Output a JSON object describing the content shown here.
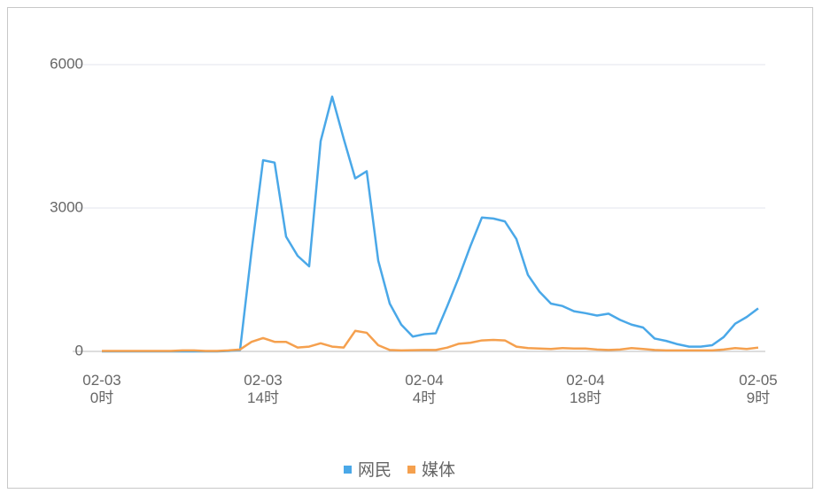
{
  "chart_data": {
    "type": "line",
    "categories": [
      "02-03\n0时",
      null,
      null,
      null,
      null,
      null,
      null,
      null,
      null,
      null,
      null,
      null,
      null,
      null,
      "02-03\n14时",
      null,
      null,
      null,
      null,
      null,
      null,
      null,
      null,
      null,
      null,
      null,
      null,
      null,
      "02-04\n4时",
      null,
      null,
      null,
      null,
      null,
      null,
      null,
      null,
      null,
      null,
      null,
      null,
      null,
      "02-04\n18时",
      null,
      null,
      null,
      null,
      null,
      null,
      null,
      null,
      null,
      null,
      null,
      null,
      null,
      null,
      "02-05\n9时"
    ],
    "series": [
      {
        "name": "网民",
        "color": "#4aa8e8",
        "values": [
          0,
          0,
          0,
          0,
          0,
          0,
          0,
          0,
          0,
          0,
          0,
          10,
          30,
          2100,
          4000,
          3950,
          2400,
          2000,
          1780,
          4400,
          5330,
          4450,
          3620,
          3770,
          1900,
          1000,
          560,
          310,
          360,
          380,
          950,
          1550,
          2200,
          2800,
          2780,
          2720,
          2350,
          1600,
          1250,
          1000,
          950,
          840,
          800,
          750,
          790,
          660,
          560,
          500,
          270,
          220,
          150,
          100,
          100,
          130,
          300,
          580,
          720,
          900
        ]
      },
      {
        "name": "媒体",
        "color": "#f5a04e",
        "values": [
          10,
          10,
          10,
          10,
          10,
          10,
          10,
          20,
          20,
          10,
          10,
          20,
          40,
          200,
          280,
          200,
          200,
          80,
          100,
          170,
          100,
          80,
          430,
          390,
          130,
          30,
          20,
          25,
          30,
          30,
          80,
          160,
          180,
          230,
          240,
          230,
          100,
          70,
          60,
          50,
          70,
          60,
          60,
          40,
          30,
          40,
          70,
          50,
          30,
          20,
          20,
          20,
          20,
          20,
          40,
          70,
          50,
          80
        ]
      }
    ],
    "ylim": [
      0,
      6000
    ],
    "yticks": [
      0,
      3000,
      6000
    ],
    "grid": true,
    "legend": "bottom"
  }
}
